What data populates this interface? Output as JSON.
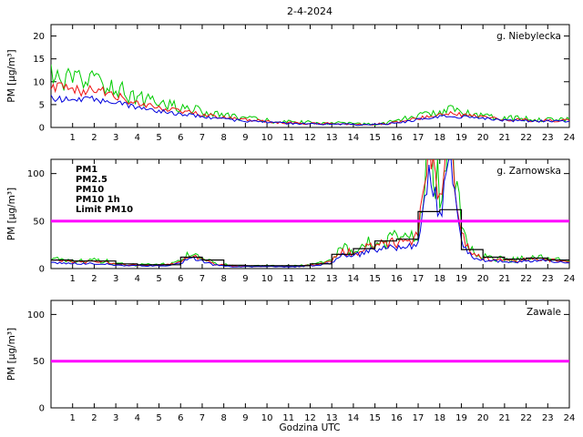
{
  "figure": {
    "title": "2-4-2024",
    "xlabel": "Godzina UTC",
    "ylabel": "PM [µg/m³]",
    "xticks": [
      1,
      2,
      3,
      4,
      5,
      6,
      7,
      8,
      9,
      10,
      11,
      12,
      13,
      14,
      15,
      16,
      17,
      18,
      19,
      20,
      21,
      22,
      23,
      24
    ],
    "background": "#ffffff"
  },
  "chart_data": [
    {
      "type": "line",
      "station": "g. Niebylecka",
      "dx": 0.5,
      "xlim": [
        0,
        24
      ],
      "ylim": [
        0,
        22.5
      ],
      "yticks": [
        0,
        5,
        10,
        15,
        20
      ],
      "series": [
        {
          "name": "PM10",
          "color": "#00cc00",
          "noise": 0.25,
          "values": [
            11,
            10.5,
            10,
            10,
            10.5,
            9.5,
            9,
            7.5,
            6.5,
            6,
            5.5,
            5,
            4.5,
            4,
            3.5,
            3,
            2.6,
            2.3,
            2,
            1.8,
            1.5,
            1.3,
            1.2,
            1.1,
            1.1,
            1,
            1,
            0.9,
            0.8,
            0.7,
            0.8,
            1,
            1.5,
            2,
            2.5,
            3,
            3.5,
            3.8,
            3.5,
            3.2,
            2.8,
            2.4,
            2.2,
            2,
            1.9,
            1.8,
            1.8,
            1.8,
            1.8
          ]
        },
        {
          "name": "PM2.5",
          "color": "#ee1111",
          "noise": 0.13,
          "values": [
            9,
            8.5,
            8,
            8,
            8.5,
            7.5,
            7,
            6,
            5.2,
            4.8,
            4.4,
            4,
            3.6,
            3.2,
            2.8,
            2.5,
            2.1,
            1.9,
            1.7,
            1.5,
            1.3,
            1.1,
            1,
            0.95,
            0.9,
            0.85,
            0.85,
            0.8,
            0.7,
            0.6,
            0.7,
            0.85,
            1.2,
            1.6,
            2,
            2.4,
            2.8,
            3,
            2.8,
            2.6,
            2.3,
            2,
            1.8,
            1.7,
            1.6,
            1.5,
            1.5,
            1.5,
            1.5
          ]
        },
        {
          "name": "PM1",
          "color": "#0000dd",
          "noise": 0.1,
          "values": [
            6.5,
            6.2,
            6,
            6,
            6.2,
            5.8,
            5.5,
            4.8,
            4.2,
            3.9,
            3.6,
            3.3,
            3,
            2.7,
            2.4,
            2.1,
            1.8,
            1.6,
            1.45,
            1.3,
            1.15,
            1,
            0.9,
            0.85,
            0.8,
            0.75,
            0.75,
            0.7,
            0.6,
            0.55,
            0.6,
            0.75,
            1,
            1.3,
            1.7,
            2,
            2.3,
            2.5,
            2.3,
            2.2,
            2,
            1.8,
            1.6,
            1.5,
            1.45,
            1.4,
            1.4,
            1.4,
            1.4
          ]
        }
      ]
    },
    {
      "type": "line",
      "station": "g. Zarnowska",
      "dx": 0.5,
      "xlim": [
        0,
        24
      ],
      "ylim": [
        0,
        115
      ],
      "yticks": [
        0,
        50,
        100
      ],
      "legend": [
        {
          "label": "PM1",
          "color": "#0000dd"
        },
        {
          "label": "PM2.5",
          "color": "#ee1111"
        },
        {
          "label": "PM10",
          "color": "#00cc00"
        },
        {
          "label": "PM10 1h",
          "color": "#000000"
        },
        {
          "label": "Limit PM10",
          "color": "#ff00ff"
        }
      ],
      "series": [
        {
          "name": "PM10",
          "color": "#00cc00",
          "noise": 0.3,
          "values": [
            10,
            9,
            9,
            8,
            9,
            8,
            6,
            4,
            4,
            4,
            4,
            5,
            9,
            16,
            12,
            6,
            4,
            3,
            3,
            3,
            3,
            3,
            3,
            3,
            4,
            6,
            9,
            22,
            18,
            24,
            30,
            28,
            32,
            30,
            40,
            140,
            80,
            150,
            45,
            18,
            13,
            11,
            10,
            9,
            11,
            13,
            11,
            9,
            8
          ]
        },
        {
          "name": "PM2.5",
          "color": "#ee1111",
          "noise": 0.22,
          "values": [
            8,
            7.5,
            7.5,
            7,
            7.5,
            7,
            5,
            3.5,
            3.5,
            3.5,
            3.5,
            4,
            8,
            14,
            10,
            5,
            3.5,
            2.5,
            2.5,
            2.5,
            2.5,
            2.5,
            2.5,
            2.5,
            3.5,
            5,
            8,
            19,
            16,
            21,
            26,
            24,
            28,
            26,
            35,
            125,
            70,
            135,
            38,
            15,
            11,
            9,
            9,
            8,
            10,
            11,
            9,
            8,
            7
          ]
        },
        {
          "name": "PM1",
          "color": "#0000dd",
          "noise": 0.18,
          "values": [
            6,
            5.5,
            5.5,
            5,
            5.5,
            5,
            4,
            3,
            3,
            3,
            3,
            3.5,
            6,
            11,
            8,
            4,
            3,
            2,
            2,
            2,
            2,
            2,
            2,
            2,
            3,
            4,
            6,
            15,
            13,
            17,
            21,
            20,
            23,
            21,
            28,
            110,
            55,
            115,
            30,
            12,
            9,
            8,
            8,
            7,
            8,
            9,
            8,
            7,
            6
          ]
        }
      ],
      "step": {
        "name": "PM10 1h",
        "color": "#000000",
        "values": [
          9,
          8,
          8,
          5,
          4,
          4,
          12,
          9,
          3.5,
          3,
          3,
          3,
          5,
          15,
          21,
          29,
          31,
          60,
          62,
          20,
          12,
          10,
          11,
          9
        ]
      },
      "limit": {
        "label": "Limit PM10",
        "value": 50,
        "color": "#ff00ff"
      }
    },
    {
      "type": "line",
      "station": "Zawale",
      "dx": 0.5,
      "xlim": [
        0,
        24
      ],
      "ylim": [
        0,
        115
      ],
      "yticks": [
        0,
        50,
        100
      ],
      "series": [],
      "limit": {
        "label": "Limit PM10",
        "value": 50,
        "color": "#ff00ff"
      }
    }
  ]
}
